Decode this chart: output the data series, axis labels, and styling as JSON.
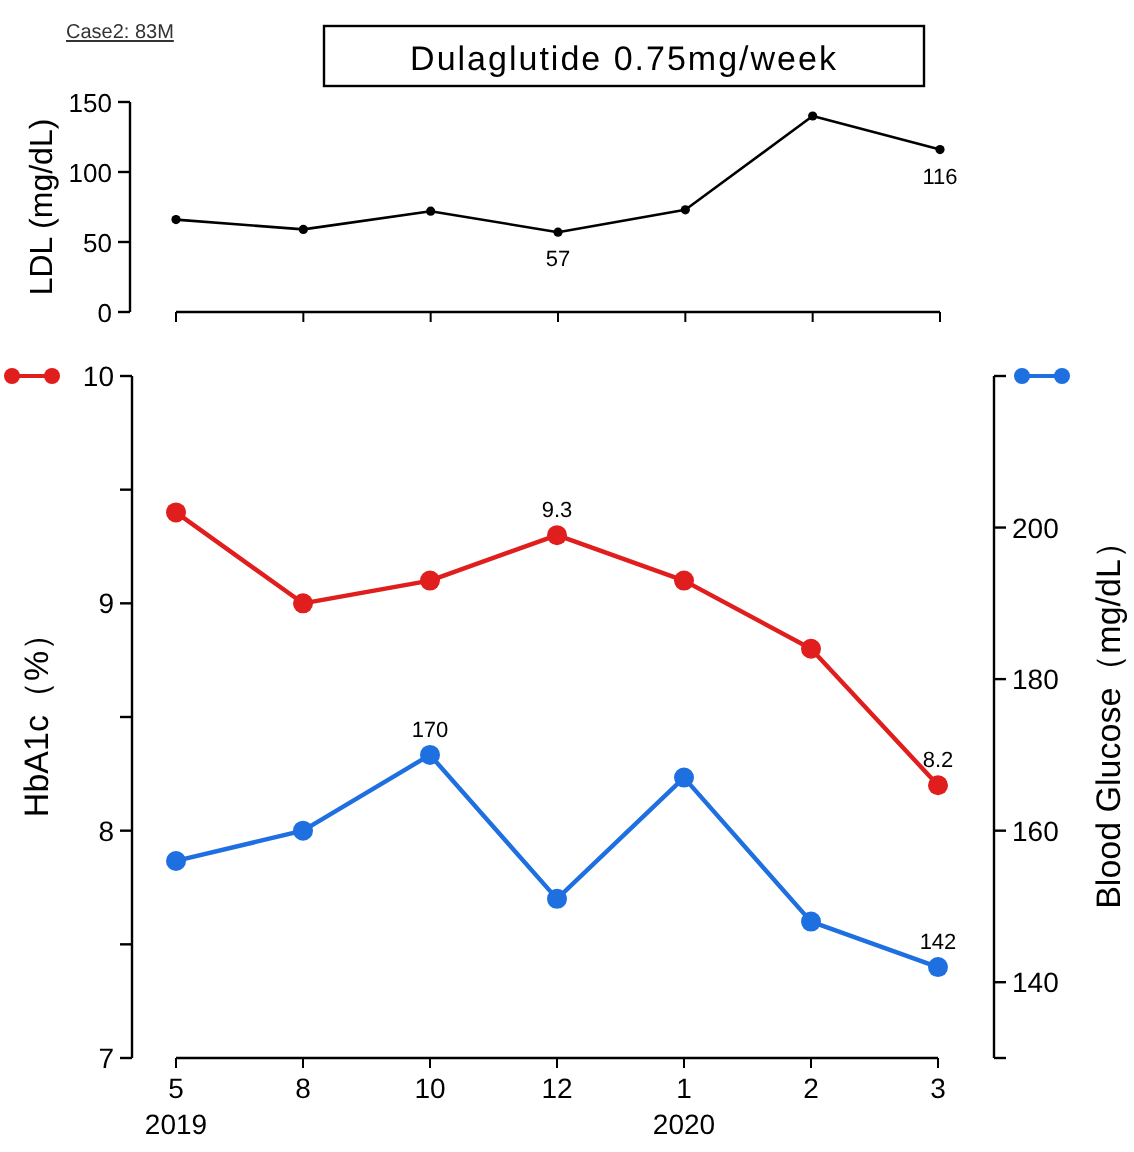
{
  "chart_data": [
    {
      "type": "line",
      "title": "Dulaglutide 0.75mg/week",
      "annotations": [
        "Case2: 83M"
      ],
      "ylabel": "LDL (mg/dL)",
      "categories": [
        null,
        null,
        null,
        null,
        null,
        null,
        null
      ],
      "values": [
        66,
        59,
        72,
        57,
        73,
        140,
        116
      ],
      "value_labels": [
        null,
        null,
        null,
        "57",
        null,
        null,
        "116"
      ],
      "color": "#000000",
      "marker": "circle",
      "ylim": [
        0,
        150
      ],
      "yticks": [
        0,
        50,
        100,
        150
      ],
      "tick_labels": "y"
    },
    {
      "type": "line",
      "ylabel": "HbA1c（%）",
      "y2label": "Blood Glucose（mg/dL）",
      "categories": [
        "5\n2019",
        "8",
        "10",
        "12",
        "1\n2020",
        "2",
        "3"
      ],
      "series": [
        {
          "color": "#e01e1e",
          "values": [
            9.4,
            9.0,
            9.1,
            9.3,
            9.1,
            8.8,
            8.2
          ],
          "value_labels": [
            null,
            null,
            null,
            "9.3",
            null,
            null,
            "8.2"
          ]
        },
        {
          "color": "#1e6fe0",
          "axis": "y2",
          "values": [
            156,
            160,
            170,
            151,
            167,
            148,
            142
          ],
          "value_labels": [
            null,
            null,
            "170",
            null,
            null,
            null,
            "142"
          ]
        }
      ],
      "marker": "circle",
      "ylim": [
        7,
        10
      ],
      "yticks": [
        7,
        8,
        9,
        10
      ],
      "y2lim": [
        130,
        220
      ],
      "y2ticks": [
        140,
        160,
        180,
        200
      ]
    }
  ]
}
